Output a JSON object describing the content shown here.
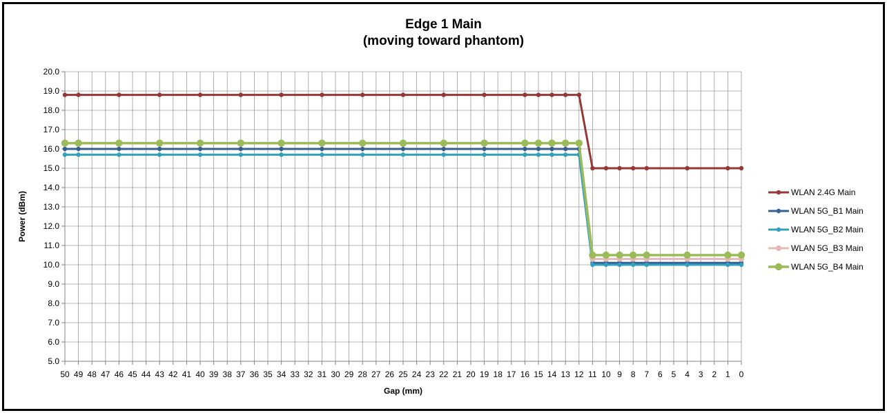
{
  "chart_data": {
    "type": "line",
    "title": [
      "Edge 1 Main",
      "(moving toward phantom)"
    ],
    "xlabel": "Gap (mm)",
    "ylabel": "Power (dBm)",
    "x": [
      50,
      49,
      48,
      47,
      46,
      45,
      44,
      43,
      42,
      41,
      40,
      39,
      38,
      37,
      36,
      35,
      34,
      33,
      32,
      31,
      30,
      29,
      28,
      27,
      26,
      25,
      24,
      23,
      22,
      21,
      20,
      19,
      18,
      17,
      16,
      15,
      14,
      13,
      12,
      11,
      10,
      9,
      8,
      7,
      6,
      5,
      4,
      3,
      2,
      1,
      0
    ],
    "x_reversed": true,
    "ylim": [
      5.0,
      20.0
    ],
    "ytick_step": 1.0,
    "yticks_decimals": 1,
    "grid": true,
    "legend_position": "right",
    "series": [
      {
        "name": "WLAN 2.4G Main",
        "color": "#953735",
        "marker_size": "small",
        "x": [
          50,
          49,
          46,
          43,
          40,
          37,
          34,
          31,
          28,
          25,
          22,
          19,
          16,
          15,
          14,
          13,
          12,
          11,
          10,
          9,
          8,
          7,
          4,
          1,
          0
        ],
        "values": [
          18.8,
          18.8,
          18.8,
          18.8,
          18.8,
          18.8,
          18.8,
          18.8,
          18.8,
          18.8,
          18.8,
          18.8,
          18.8,
          18.8,
          18.8,
          18.8,
          18.8,
          15.0,
          15.0,
          15.0,
          15.0,
          15.0,
          15.0,
          15.0,
          15.0
        ]
      },
      {
        "name": "WLAN 5G_B1 Main",
        "color": "#376092",
        "marker_size": "small",
        "x": [
          50,
          49,
          46,
          43,
          40,
          37,
          34,
          31,
          28,
          25,
          22,
          19,
          16,
          15,
          14,
          13,
          12,
          11,
          10,
          9,
          8,
          7,
          4,
          1,
          0
        ],
        "values": [
          16.0,
          16.0,
          16.0,
          16.0,
          16.0,
          16.0,
          16.0,
          16.0,
          16.0,
          16.0,
          16.0,
          16.0,
          16.0,
          16.0,
          16.0,
          16.0,
          16.0,
          10.1,
          10.1,
          10.1,
          10.1,
          10.1,
          10.1,
          10.1,
          10.1
        ]
      },
      {
        "name": "WLAN 5G_B2 Main",
        "color": "#31A0BD",
        "marker_size": "small",
        "x": [
          50,
          49,
          46,
          43,
          40,
          37,
          34,
          31,
          28,
          25,
          22,
          19,
          16,
          15,
          14,
          13,
          12,
          11,
          10,
          9,
          8,
          7,
          4,
          1,
          0
        ],
        "values": [
          15.7,
          15.7,
          15.7,
          15.7,
          15.7,
          15.7,
          15.7,
          15.7,
          15.7,
          15.7,
          15.7,
          15.7,
          15.7,
          15.7,
          15.7,
          15.7,
          15.7,
          10.0,
          10.0,
          10.0,
          10.0,
          10.0,
          10.0,
          10.0,
          10.0
        ]
      },
      {
        "name": "WLAN 5G_B3 Main",
        "color": "#E6B9B8",
        "marker_size": "medium",
        "x": [
          50,
          49,
          46,
          43,
          40,
          37,
          34,
          31,
          28,
          25,
          22,
          19,
          16,
          15,
          14,
          13,
          12,
          11,
          10,
          9,
          8,
          7,
          4,
          1,
          0
        ],
        "values": [
          16.3,
          16.3,
          16.3,
          16.3,
          16.3,
          16.3,
          16.3,
          16.3,
          16.3,
          16.3,
          16.3,
          16.3,
          16.3,
          16.3,
          16.3,
          16.3,
          16.3,
          10.3,
          10.3,
          10.3,
          10.3,
          10.3,
          10.3,
          10.3,
          10.3
        ]
      },
      {
        "name": "WLAN 5G_B4 Main",
        "color": "#9BBB59",
        "marker_size": "large",
        "x": [
          50,
          49,
          46,
          43,
          40,
          37,
          34,
          31,
          28,
          25,
          22,
          19,
          16,
          15,
          14,
          13,
          12,
          11,
          10,
          9,
          8,
          7,
          4,
          1,
          0
        ],
        "values": [
          16.3,
          16.3,
          16.3,
          16.3,
          16.3,
          16.3,
          16.3,
          16.3,
          16.3,
          16.3,
          16.3,
          16.3,
          16.3,
          16.3,
          16.3,
          16.3,
          16.3,
          10.5,
          10.5,
          10.5,
          10.5,
          10.5,
          10.5,
          10.5,
          10.5
        ]
      }
    ]
  }
}
